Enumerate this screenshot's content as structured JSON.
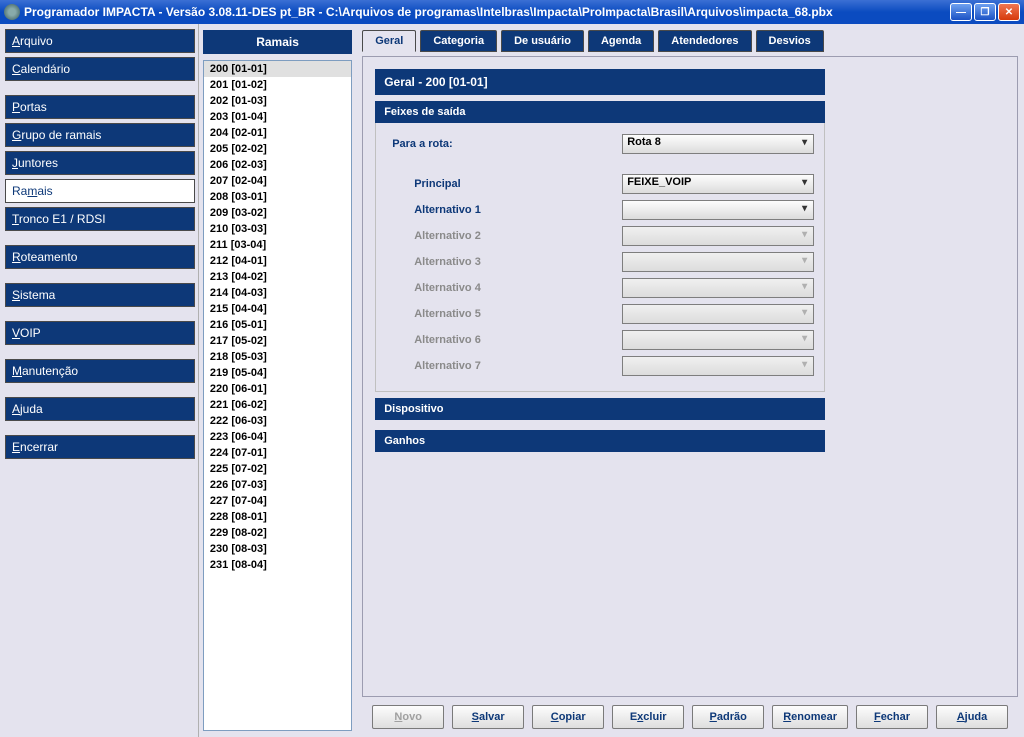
{
  "window": {
    "title": "Programador IMPACTA - Versão  3.08.11-DES pt_BR - C:\\Arquivos de programas\\Intelbras\\Impacta\\ProImpacta\\Brasil\\Arquivos\\impacta_68.pbx"
  },
  "sidebar": {
    "groups": [
      [
        {
          "k": "A",
          "rest": "rquivo"
        },
        {
          "k": "C",
          "rest": "alendário"
        }
      ],
      [
        {
          "k": "P",
          "rest": "ortas"
        },
        {
          "k": "G",
          "rest": "rupo de ramais"
        },
        {
          "k": "J",
          "rest": "untores"
        },
        {
          "active": true,
          "pre": "Ra",
          "k": "m",
          "rest": "ais"
        },
        {
          "k": "T",
          "rest": "ronco E1 / RDSI"
        }
      ],
      [
        {
          "k": "R",
          "rest": "oteamento"
        }
      ],
      [
        {
          "k": "S",
          "rest": "istema"
        }
      ],
      [
        {
          "k": "V",
          "rest": "OIP"
        }
      ],
      [
        {
          "k": "M",
          "rest": "anutenção"
        }
      ],
      [
        {
          "k": "A",
          "rest": "juda"
        }
      ],
      [
        {
          "k": "E",
          "rest": "ncerrar"
        }
      ]
    ]
  },
  "list": {
    "header": "Ramais",
    "items": [
      "200 [01-01]",
      "201 [01-02]",
      "202 [01-03]",
      "203 [01-04]",
      "204 [02-01]",
      "205 [02-02]",
      "206 [02-03]",
      "207 [02-04]",
      "208 [03-01]",
      "209 [03-02]",
      "210 [03-03]",
      "211 [03-04]",
      "212 [04-01]",
      "213 [04-02]",
      "214 [04-03]",
      "215 [04-04]",
      "216 [05-01]",
      "217 [05-02]",
      "218 [05-03]",
      "219 [05-04]",
      "220 [06-01]",
      "221 [06-02]",
      "222 [06-03]",
      "223 [06-04]",
      "224 [07-01]",
      "225 [07-02]",
      "226 [07-03]",
      "227 [07-04]",
      "228 [08-01]",
      "229 [08-02]",
      "230 [08-03]",
      "231 [08-04]"
    ],
    "selected": 0
  },
  "tabs": [
    "Geral",
    "Categoria",
    "De usuário",
    "Agenda",
    "Atendedores",
    "Desvios"
  ],
  "active_tab": 0,
  "content": {
    "title": "Geral - 200 [01-01]",
    "sub1_title": "Feixes de saída",
    "route_label": "Para a rota:",
    "route_value": "Rota 8",
    "bundles": [
      {
        "label": "Principal",
        "value": "FEIXE_VOIP",
        "enabled": true
      },
      {
        "label": "Alternativo 1",
        "value": "",
        "enabled": true
      },
      {
        "label": "Alternativo 2",
        "value": "",
        "enabled": false
      },
      {
        "label": "Alternativo 3",
        "value": "",
        "enabled": false
      },
      {
        "label": "Alternativo 4",
        "value": "",
        "enabled": false
      },
      {
        "label": "Alternativo 5",
        "value": "",
        "enabled": false
      },
      {
        "label": "Alternativo 6",
        "value": "",
        "enabled": false
      },
      {
        "label": "Alternativo 7",
        "value": "",
        "enabled": false
      }
    ],
    "sub2_title": "Dispositivo",
    "sub3_title": "Ganhos"
  },
  "buttons": [
    {
      "k": "N",
      "rest": "ovo",
      "disabled": true
    },
    {
      "k": "S",
      "rest": "alvar"
    },
    {
      "k": "C",
      "rest": "opiar"
    },
    {
      "pre": "E",
      "k": "x",
      "rest": "cluir"
    },
    {
      "k": "P",
      "rest": "adrão"
    },
    {
      "k": "R",
      "rest": "enomear"
    },
    {
      "k": "F",
      "rest": "echar"
    },
    {
      "k": "A",
      "rest": "juda"
    }
  ]
}
